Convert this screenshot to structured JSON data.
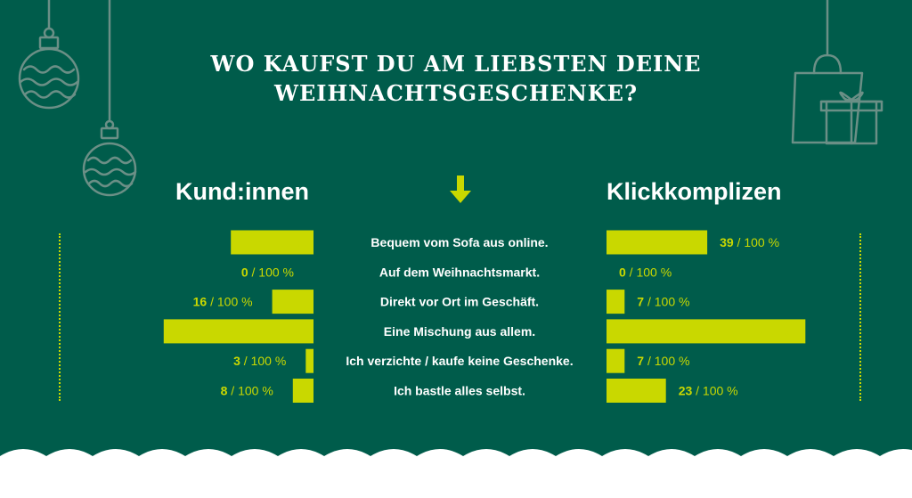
{
  "title": {
    "line1": "WO KAUFST DU AM LIEBSTEN DEINE",
    "line2": "WEIHNACHTSGESCHENKE?"
  },
  "colors": {
    "background": "#005c4b",
    "bar": "#c9d800",
    "value_text": "#c9d800",
    "label_text": "#ffffff",
    "decor_stroke": "#6b8f86"
  },
  "icons": [
    "ornament-icon",
    "ornament-icon",
    "shopping-bag-icon",
    "gift-icon",
    "arrow-down-icon"
  ],
  "chart_data": {
    "type": "bar",
    "orientation": "horizontal-butterfly",
    "max": 100,
    "value_suffix": " / 100 %",
    "categories": [
      "Bequem vom Sofa aus online.",
      "Auf dem Weihnachtsmarkt.",
      "Direkt vor Ort im Geschäft.",
      "Eine Mischung aus allem.",
      "Ich verzichte / kaufe keine Geschenke.",
      "Ich bastle alles selbst."
    ],
    "series": [
      {
        "name": "Kund:innen",
        "values": [
          32,
          0,
          16,
          58,
          3,
          8
        ]
      },
      {
        "name": "Klickkomplizen",
        "values": [
          39,
          0,
          7,
          77,
          7,
          23
        ]
      }
    ]
  }
}
